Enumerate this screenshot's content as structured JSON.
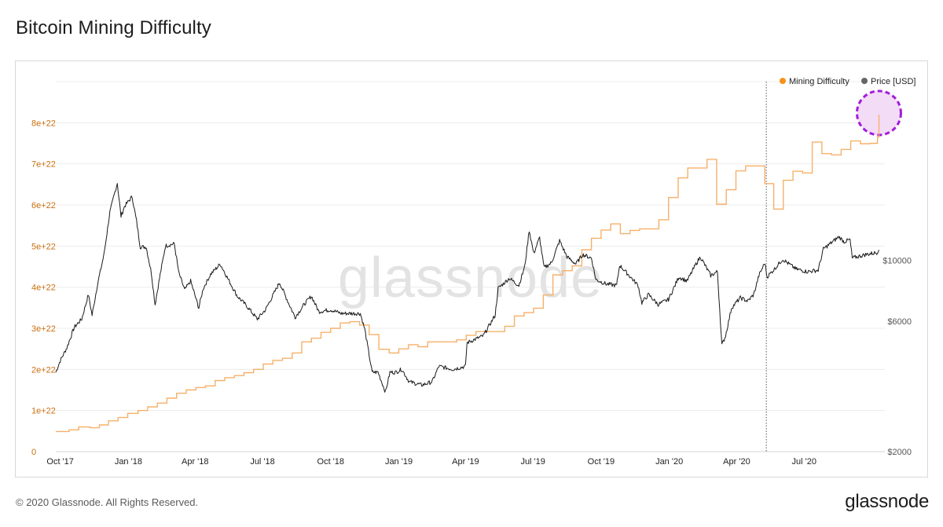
{
  "page": {
    "title": "Bitcoin Mining Difficulty",
    "copyright": "© 2020 Glassnode. All Rights Reserved.",
    "brand": "glassnode",
    "watermark": "glassnode"
  },
  "chart_data": {
    "type": "line",
    "title": "Bitcoin Mining Difficulty",
    "grid": true,
    "legend_position": "top-right",
    "legend": [
      "Mining Difficulty",
      "Price [USD]"
    ],
    "colors": {
      "difficulty": "#f7931a",
      "difficulty_line": "#f6b06a",
      "price": "#1a1a1a",
      "grid": "#ececec",
      "left_ticks": "#c96f10",
      "right_ticks": "#555555",
      "highlight": "#a21cdb",
      "highlight_fill": "#f3dcf6",
      "watermark": "#e3e3e3"
    },
    "x_range": [
      "2017-09-25",
      "2020-10-18"
    ],
    "x_ticks": [
      {
        "date": "2017-10-01",
        "label": "Oct '17"
      },
      {
        "date": "2018-01-01",
        "label": "Jan '18"
      },
      {
        "date": "2018-04-01",
        "label": "Apr '18"
      },
      {
        "date": "2018-07-01",
        "label": "Jul '18"
      },
      {
        "date": "2018-10-01",
        "label": "Oct '18"
      },
      {
        "date": "2019-01-01",
        "label": "Jan '19"
      },
      {
        "date": "2019-04-01",
        "label": "Apr '19"
      },
      {
        "date": "2019-07-01",
        "label": "Jul '19"
      },
      {
        "date": "2019-10-01",
        "label": "Oct '19"
      },
      {
        "date": "2020-01-01",
        "label": "Jan '20"
      },
      {
        "date": "2020-04-01",
        "label": "Apr '20"
      },
      {
        "date": "2020-07-01",
        "label": "Jul '20"
      }
    ],
    "y_left": {
      "range": [
        0,
        9e+22
      ],
      "ticks": [
        {
          "value": 0,
          "label": "0"
        },
        {
          "value": 1e+22,
          "label": "1e+22"
        },
        {
          "value": 2e+22,
          "label": "2e+22"
        },
        {
          "value": 3e+22,
          "label": "3e+22"
        },
        {
          "value": 4e+22,
          "label": "4e+22"
        },
        {
          "value": 5e+22,
          "label": "5e+22"
        },
        {
          "value": 6e+22,
          "label": "6e+22"
        },
        {
          "value": 7e+22,
          "label": "7e+22"
        },
        {
          "value": 8e+22,
          "label": "8e+22"
        }
      ]
    },
    "y_right": {
      "scale": "log",
      "range": [
        2000,
        45000
      ],
      "ticks": [
        {
          "value": 2000,
          "label": "$2000"
        },
        {
          "value": 6000,
          "label": "$6000"
        },
        {
          "value": 10000,
          "label": "$10000"
        }
      ]
    },
    "vertical_marker": {
      "date": "2020-05-11"
    },
    "highlight_circle": {
      "date": "2020-10-10",
      "value": 8.2e+22
    },
    "series": [
      {
        "name": "Mining Difficulty",
        "axis": "left",
        "step": true,
        "points": [
          [
            "2017-09-25",
            4.9e+21
          ],
          [
            "2017-10-13",
            5.3e+21
          ],
          [
            "2017-10-26",
            6e+21
          ],
          [
            "2017-11-10",
            5.8e+21
          ],
          [
            "2017-11-23",
            6.5e+21
          ],
          [
            "2017-12-05",
            7.5e+21
          ],
          [
            "2017-12-18",
            8.3e+21
          ],
          [
            "2017-12-31",
            9.3e+21
          ],
          [
            "2018-01-14",
            1e+22
          ],
          [
            "2018-01-27",
            1.09e+22
          ],
          [
            "2018-02-09",
            1.18e+22
          ],
          [
            "2018-02-22",
            1.3e+22
          ],
          [
            "2018-03-07",
            1.42e+22
          ],
          [
            "2018-03-20",
            1.5e+22
          ],
          [
            "2018-04-02",
            1.56e+22
          ],
          [
            "2018-04-15",
            1.6e+22
          ],
          [
            "2018-04-28",
            1.73e+22
          ],
          [
            "2018-05-11",
            1.8e+22
          ],
          [
            "2018-05-24",
            1.85e+22
          ],
          [
            "2018-06-06",
            1.92e+22
          ],
          [
            "2018-06-19",
            2e+22
          ],
          [
            "2018-07-02",
            2.13e+22
          ],
          [
            "2018-07-15",
            2.22e+22
          ],
          [
            "2018-07-28",
            2.27e+22
          ],
          [
            "2018-08-10",
            2.4e+22
          ],
          [
            "2018-08-23",
            2.67e+22
          ],
          [
            "2018-09-05",
            2.76e+22
          ],
          [
            "2018-09-18",
            2.9e+22
          ],
          [
            "2018-10-01",
            3e+22
          ],
          [
            "2018-10-14",
            3.13e+22
          ],
          [
            "2018-10-27",
            3.16e+22
          ],
          [
            "2018-11-09",
            3.08e+22
          ],
          [
            "2018-11-22",
            2.85e+22
          ],
          [
            "2018-12-05",
            2.49e+22
          ],
          [
            "2018-12-19",
            2.4e+22
          ],
          [
            "2019-01-01",
            2.5e+22
          ],
          [
            "2019-01-14",
            2.6e+22
          ],
          [
            "2019-01-27",
            2.55e+22
          ],
          [
            "2019-02-09",
            2.67e+22
          ],
          [
            "2019-02-22",
            2.67e+22
          ],
          [
            "2019-03-07",
            2.67e+22
          ],
          [
            "2019-03-20",
            2.72e+22
          ],
          [
            "2019-04-02",
            2.83e+22
          ],
          [
            "2019-04-15",
            2.92e+22
          ],
          [
            "2019-04-28",
            2.92e+22
          ],
          [
            "2019-05-11",
            2.92e+22
          ],
          [
            "2019-05-24",
            3.05e+22
          ],
          [
            "2019-06-06",
            3.3e+22
          ],
          [
            "2019-06-19",
            3.38e+22
          ],
          [
            "2019-07-02",
            3.49e+22
          ],
          [
            "2019-07-15",
            3.81e+22
          ],
          [
            "2019-07-28",
            4.3e+22
          ],
          [
            "2019-08-10",
            4.4e+22
          ],
          [
            "2019-08-23",
            4.52e+22
          ],
          [
            "2019-09-05",
            4.91e+22
          ],
          [
            "2019-09-18",
            5.19e+22
          ],
          [
            "2019-10-01",
            5.39e+22
          ],
          [
            "2019-10-14",
            5.54e+22
          ],
          [
            "2019-10-27",
            5.3e+22
          ],
          [
            "2019-11-09",
            5.38e+22
          ],
          [
            "2019-11-22",
            5.42e+22
          ],
          [
            "2019-12-05",
            5.42e+22
          ],
          [
            "2019-12-18",
            5.64e+22
          ],
          [
            "2019-12-31",
            6.18e+22
          ],
          [
            "2020-01-13",
            6.66e+22
          ],
          [
            "2020-01-26",
            6.9e+22
          ],
          [
            "2020-02-08",
            6.9e+22
          ],
          [
            "2020-02-21",
            7.11e+22
          ],
          [
            "2020-03-05",
            6.02e+22
          ],
          [
            "2020-03-18",
            6.37e+22
          ],
          [
            "2020-03-31",
            6.83e+22
          ],
          [
            "2020-04-13",
            6.95e+22
          ],
          [
            "2020-04-26",
            6.95e+22
          ],
          [
            "2020-05-09",
            6.52e+22
          ],
          [
            "2020-05-21",
            5.9e+22
          ],
          [
            "2020-06-03",
            6.6e+22
          ],
          [
            "2020-06-16",
            6.82e+22
          ],
          [
            "2020-06-29",
            6.78e+22
          ],
          [
            "2020-07-12",
            7.53e+22
          ],
          [
            "2020-07-25",
            7.25e+22
          ],
          [
            "2020-08-07",
            7.22e+22
          ],
          [
            "2020-08-20",
            7.35e+22
          ],
          [
            "2020-09-02",
            7.56e+22
          ],
          [
            "2020-09-15",
            7.49e+22
          ],
          [
            "2020-09-28",
            7.5e+22
          ],
          [
            "2020-10-08",
            7.65e+22
          ],
          [
            "2020-10-10",
            8.2e+22
          ]
        ]
      },
      {
        "name": "Price [USD]",
        "axis": "right",
        "points": [
          [
            "2017-09-25",
            3900
          ],
          [
            "2017-10-01",
            4300
          ],
          [
            "2017-10-10",
            4800
          ],
          [
            "2017-10-20",
            5700
          ],
          [
            "2017-10-30",
            6100
          ],
          [
            "2017-11-08",
            7500
          ],
          [
            "2017-11-13",
            6300
          ],
          [
            "2017-11-20",
            8100
          ],
          [
            "2017-11-29",
            10500
          ],
          [
            "2017-12-07",
            15000
          ],
          [
            "2017-12-12",
            17000
          ],
          [
            "2017-12-17",
            19200
          ],
          [
            "2017-12-22",
            14500
          ],
          [
            "2017-12-27",
            15800
          ],
          [
            "2018-01-06",
            17100
          ],
          [
            "2018-01-12",
            13900
          ],
          [
            "2018-01-17",
            11200
          ],
          [
            "2018-01-25",
            11200
          ],
          [
            "2018-02-01",
            9000
          ],
          [
            "2018-02-06",
            6900
          ],
          [
            "2018-02-12",
            8600
          ],
          [
            "2018-02-20",
            11300
          ],
          [
            "2018-03-04",
            11500
          ],
          [
            "2018-03-10",
            9000
          ],
          [
            "2018-03-18",
            7800
          ],
          [
            "2018-03-26",
            8400
          ],
          [
            "2018-04-06",
            6700
          ],
          [
            "2018-04-12",
            7900
          ],
          [
            "2018-04-22",
            8900
          ],
          [
            "2018-05-05",
            9700
          ],
          [
            "2018-05-15",
            8600
          ],
          [
            "2018-05-28",
            7400
          ],
          [
            "2018-06-10",
            6800
          ],
          [
            "2018-06-24",
            6100
          ],
          [
            "2018-07-05",
            6600
          ],
          [
            "2018-07-24",
            8300
          ],
          [
            "2018-08-05",
            7000
          ],
          [
            "2018-08-14",
            6200
          ],
          [
            "2018-08-28",
            7000
          ],
          [
            "2018-09-05",
            7400
          ],
          [
            "2018-09-15",
            6500
          ],
          [
            "2018-10-01",
            6600
          ],
          [
            "2018-10-15",
            6400
          ],
          [
            "2018-11-01",
            6400
          ],
          [
            "2018-11-10",
            6400
          ],
          [
            "2018-11-16",
            5600
          ],
          [
            "2018-11-22",
            4500
          ],
          [
            "2018-11-26",
            3900
          ],
          [
            "2018-12-04",
            3900
          ],
          [
            "2018-12-14",
            3300
          ],
          [
            "2018-12-20",
            3900
          ],
          [
            "2018-12-28",
            3900
          ],
          [
            "2019-01-05",
            4000
          ],
          [
            "2019-01-15",
            3600
          ],
          [
            "2019-02-01",
            3500
          ],
          [
            "2019-02-15",
            3600
          ],
          [
            "2019-02-24",
            4100
          ],
          [
            "2019-03-15",
            4000
          ],
          [
            "2019-04-01",
            4100
          ],
          [
            "2019-04-03",
            5000
          ],
          [
            "2019-04-25",
            5300
          ],
          [
            "2019-05-11",
            6300
          ],
          [
            "2019-05-15",
            7900
          ],
          [
            "2019-05-30",
            8600
          ],
          [
            "2019-06-12",
            8100
          ],
          [
            "2019-06-20",
            9500
          ],
          [
            "2019-06-26",
            12900
          ],
          [
            "2019-07-02",
            10600
          ],
          [
            "2019-07-10",
            12100
          ],
          [
            "2019-07-16",
            9400
          ],
          [
            "2019-07-26",
            9800
          ],
          [
            "2019-08-06",
            11800
          ],
          [
            "2019-08-16",
            10300
          ],
          [
            "2019-08-28",
            9700
          ],
          [
            "2019-09-06",
            10500
          ],
          [
            "2019-09-18",
            10200
          ],
          [
            "2019-09-24",
            8500
          ],
          [
            "2019-10-08",
            8200
          ],
          [
            "2019-10-22",
            8100
          ],
          [
            "2019-10-26",
            9600
          ],
          [
            "2019-11-08",
            8800
          ],
          [
            "2019-11-20",
            8100
          ],
          [
            "2019-11-25",
            7000
          ],
          [
            "2019-12-04",
            7500
          ],
          [
            "2019-12-17",
            6900
          ],
          [
            "2019-12-31",
            7200
          ],
          [
            "2020-01-14",
            8700
          ],
          [
            "2020-01-25",
            8400
          ],
          [
            "2020-02-07",
            9800
          ],
          [
            "2020-02-12",
            10300
          ],
          [
            "2020-02-26",
            8800
          ],
          [
            "2020-03-06",
            9100
          ],
          [
            "2020-03-12",
            4900
          ],
          [
            "2020-03-17",
            5300
          ],
          [
            "2020-03-25",
            6700
          ],
          [
            "2020-04-06",
            7300
          ],
          [
            "2020-04-16",
            7100
          ],
          [
            "2020-04-24",
            7500
          ],
          [
            "2020-05-01",
            8800
          ],
          [
            "2020-05-09",
            9800
          ],
          [
            "2020-05-12",
            8700
          ],
          [
            "2020-05-22",
            9300
          ],
          [
            "2020-06-02",
            10100
          ],
          [
            "2020-06-20",
            9300
          ],
          [
            "2020-07-05",
            9100
          ],
          [
            "2020-07-20",
            9200
          ],
          [
            "2020-07-27",
            11000
          ],
          [
            "2020-08-17",
            12200
          ],
          [
            "2020-08-24",
            11700
          ],
          [
            "2020-09-01",
            11900
          ],
          [
            "2020-09-04",
            10200
          ],
          [
            "2020-09-10",
            10300
          ],
          [
            "2020-09-22",
            10500
          ],
          [
            "2020-10-08",
            10700
          ],
          [
            "2020-10-10",
            11100
          ]
        ]
      }
    ]
  }
}
